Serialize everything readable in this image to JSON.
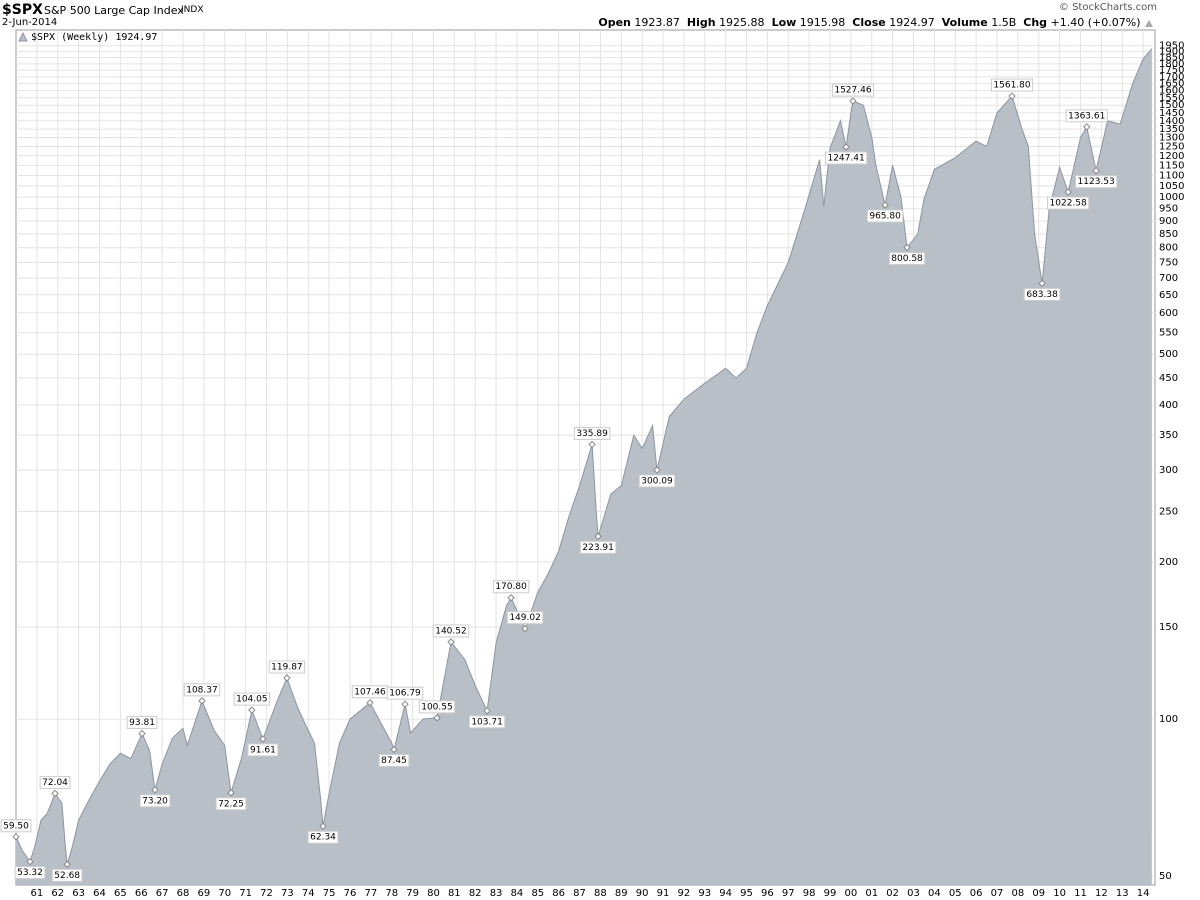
{
  "chart_data": {
    "type": "area",
    "symbol": "$SPX",
    "name": "S&P 500 Large Cap Index",
    "exchange": "INDX",
    "date": "2-Jun-2014",
    "source": "© StockCharts.com",
    "quote": {
      "open_label": "Open",
      "open": 1923.87,
      "high_label": "High",
      "high": 1925.88,
      "low_label": "Low",
      "low": 1915.98,
      "close_label": "Close",
      "close": 1924.97,
      "volume_label": "Volume",
      "volume": "1.5B",
      "chg_label": "Chg",
      "chg": "+1.40 (+0.07%)"
    },
    "log_scale": true,
    "grid": true,
    "xlim": [
      1960.0,
      2014.57
    ],
    "ylim": [
      48.1,
      2090
    ],
    "xticks": [
      {
        "value": 1961,
        "label": "61"
      },
      {
        "value": 1962,
        "label": "62"
      },
      {
        "value": 1963,
        "label": "63"
      },
      {
        "value": 1964,
        "label": "64"
      },
      {
        "value": 1965,
        "label": "65"
      },
      {
        "value": 1966,
        "label": "66"
      },
      {
        "value": 1967,
        "label": "67"
      },
      {
        "value": 1968,
        "label": "68"
      },
      {
        "value": 1969,
        "label": "69"
      },
      {
        "value": 1970,
        "label": "70"
      },
      {
        "value": 1971,
        "label": "71"
      },
      {
        "value": 1972,
        "label": "72"
      },
      {
        "value": 1973,
        "label": "73"
      },
      {
        "value": 1974,
        "label": "74"
      },
      {
        "value": 1975,
        "label": "75"
      },
      {
        "value": 1976,
        "label": "76"
      },
      {
        "value": 1977,
        "label": "77"
      },
      {
        "value": 1978,
        "label": "78"
      },
      {
        "value": 1979,
        "label": "79"
      },
      {
        "value": 1980,
        "label": "80"
      },
      {
        "value": 1981,
        "label": "81"
      },
      {
        "value": 1982,
        "label": "82"
      },
      {
        "value": 1983,
        "label": "83"
      },
      {
        "value": 1984,
        "label": "84"
      },
      {
        "value": 1985,
        "label": "85"
      },
      {
        "value": 1986,
        "label": "86"
      },
      {
        "value": 1987,
        "label": "87"
      },
      {
        "value": 1988,
        "label": "88"
      },
      {
        "value": 1989,
        "label": "89"
      },
      {
        "value": 1990,
        "label": "90"
      },
      {
        "value": 1991,
        "label": "91"
      },
      {
        "value": 1992,
        "label": "92"
      },
      {
        "value": 1993,
        "label": "93"
      },
      {
        "value": 1994,
        "label": "94"
      },
      {
        "value": 1995,
        "label": "95"
      },
      {
        "value": 1996,
        "label": "96"
      },
      {
        "value": 1997,
        "label": "97"
      },
      {
        "value": 1998,
        "label": "98"
      },
      {
        "value": 1999,
        "label": "99"
      },
      {
        "value": 2000,
        "label": "00"
      },
      {
        "value": 2001,
        "label": "01"
      },
      {
        "value": 2002,
        "label": "02"
      },
      {
        "value": 2003,
        "label": "03"
      },
      {
        "value": 2004,
        "label": "04"
      },
      {
        "value": 2005,
        "label": "05"
      },
      {
        "value": 2006,
        "label": "06"
      },
      {
        "value": 2007,
        "label": "07"
      },
      {
        "value": 2008,
        "label": "08"
      },
      {
        "value": 2009,
        "label": "09"
      },
      {
        "value": 2010,
        "label": "10"
      },
      {
        "value": 2011,
        "label": "11"
      },
      {
        "value": 2012,
        "label": "12"
      },
      {
        "value": 2013,
        "label": "13"
      },
      {
        "value": 2014,
        "label": "14"
      }
    ],
    "yticks": [
      50,
      100,
      150,
      200,
      250,
      300,
      350,
      400,
      450,
      500,
      550,
      600,
      650,
      700,
      750,
      800,
      850,
      900,
      950,
      1000,
      1050,
      1100,
      1150,
      1200,
      1250,
      1300,
      1350,
      1400,
      1450,
      1500,
      1550,
      1600,
      1650,
      1700,
      1750,
      1800,
      1850,
      1900,
      1950
    ],
    "series": [
      {
        "name": "$SPX (Weekly)",
        "last": 1924.97,
        "color": "#b9bfc7",
        "line_color": "#8c95a0",
        "x": [
          1960.0,
          1960.3,
          1960.67,
          1960.9,
          1961.2,
          1961.5,
          1961.87,
          1962.2,
          1962.35,
          1962.45,
          1962.7,
          1963.0,
          1963.5,
          1964.0,
          1964.5,
          1965.0,
          1965.5,
          1966.04,
          1966.4,
          1966.66,
          1967.0,
          1967.5,
          1968.0,
          1968.2,
          1968.91,
          1969.5,
          1970.0,
          1970.3,
          1970.8,
          1971.3,
          1971.83,
          1972.5,
          1972.98,
          1973.5,
          1973.9,
          1974.3,
          1974.6,
          1974.71,
          1975.0,
          1975.5,
          1976.0,
          1976.96,
          1977.5,
          1978.0,
          1978.11,
          1978.64,
          1978.9,
          1979.5,
          1980.17,
          1980.84,
          1981.5,
          1982.0,
          1982.57,
          1983.0,
          1983.5,
          1983.72,
          1984.39,
          1985.0,
          1985.5,
          1986.0,
          1986.5,
          1987.0,
          1987.6,
          1987.8,
          1987.89,
          1988.5,
          1989.0,
          1989.6,
          1990.0,
          1990.5,
          1990.71,
          1991.3,
          1992.0,
          1993.0,
          1994.0,
          1994.5,
          1995.0,
          1995.5,
          1996.0,
          1997.0,
          1997.8,
          1998.5,
          1998.7,
          1999.0,
          1999.5,
          1999.77,
          2000.0,
          2000.1,
          2000.6,
          2001.0,
          2001.2,
          2001.64,
          2002.0,
          2002.4,
          2002.69,
          2003.2,
          2003.5,
          2004.0,
          2005.0,
          2006.0,
          2006.5,
          2007.0,
          2007.72,
          2008.2,
          2008.5,
          2008.8,
          2009.16,
          2009.5,
          2010.0,
          2010.41,
          2011.0,
          2011.3,
          2011.75,
          2012.3,
          2012.9,
          2013.5,
          2014.0,
          2014.42
        ],
        "values": [
          59.5,
          56,
          53.32,
          57,
          64,
          66,
          72.04,
          69,
          58,
          52.68,
          57,
          64,
          70,
          76,
          82,
          86,
          84,
          93.81,
          87,
          73.2,
          82,
          92,
          96,
          89,
          108.37,
          95,
          89,
          72.25,
          84,
          104.05,
          91.61,
          108,
          119.87,
          105,
          97,
          90,
          70,
          62.34,
          72,
          90,
          100,
          107.46,
          98,
          90,
          87.45,
          106.79,
          94,
          100,
          100.55,
          140.52,
          130,
          116,
          103.71,
          140,
          165,
          170.8,
          149.02,
          175,
          190,
          210,
          245,
          280,
          335.89,
          250,
          223.91,
          270,
          280,
          350,
          330,
          365,
          300.09,
          380,
          410,
          440,
          470,
          450,
          470,
          550,
          620,
          750,
          950,
          1180,
          960,
          1240,
          1400,
          1247.41,
          1450,
          1527.46,
          1500,
          1300,
          1150,
          965.8,
          1150,
          1000,
          800.58,
          850,
          990,
          1130,
          1190,
          1280,
          1250,
          1450,
          1561.8,
          1350,
          1250,
          850,
          683.38,
          950,
          1140,
          1022.58,
          1300,
          1363.61,
          1123.53,
          1400,
          1380,
          1650,
          1840,
          1924.97
        ]
      }
    ],
    "annotations": [
      {
        "x": 1960.0,
        "value": 59.5,
        "label": "59.50"
      },
      {
        "x": 1960.67,
        "value": 53.32
      },
      {
        "x": 1961.87,
        "value": 72.04
      },
      {
        "x": 1962.45,
        "value": 52.68
      },
      {
        "x": 1966.04,
        "value": 93.81
      },
      {
        "x": 1966.66,
        "value": 73.2,
        "label": "73.20"
      },
      {
        "x": 1968.91,
        "value": 108.37
      },
      {
        "x": 1970.3,
        "value": 72.25
      },
      {
        "x": 1971.3,
        "value": 104.05
      },
      {
        "x": 1971.83,
        "value": 91.61
      },
      {
        "x": 1972.98,
        "value": 119.87
      },
      {
        "x": 1974.71,
        "value": 62.34
      },
      {
        "x": 1976.96,
        "value": 107.46
      },
      {
        "x": 1978.11,
        "value": 87.45
      },
      {
        "x": 1978.64,
        "value": 106.79
      },
      {
        "x": 1980.17,
        "value": 100.55
      },
      {
        "x": 1980.84,
        "value": 140.52
      },
      {
        "x": 1982.57,
        "value": 103.71
      },
      {
        "x": 1983.72,
        "value": 170.8,
        "label": "170.80"
      },
      {
        "x": 1984.39,
        "value": 149.02
      },
      {
        "x": 1987.6,
        "value": 335.89
      },
      {
        "x": 1987.89,
        "value": 223.91
      },
      {
        "x": 1990.71,
        "value": 300.09
      },
      {
        "x": 1999.77,
        "value": 1247.41
      },
      {
        "x": 2000.1,
        "value": 1527.46
      },
      {
        "x": 2001.64,
        "value": 965.8,
        "label": "965.80"
      },
      {
        "x": 2002.69,
        "value": 800.58
      },
      {
        "x": 2007.72,
        "value": 1561.8,
        "label": "1561.80"
      },
      {
        "x": 2009.16,
        "value": 683.38
      },
      {
        "x": 2010.41,
        "value": 1022.58
      },
      {
        "x": 2011.3,
        "value": 1363.61
      },
      {
        "x": 2011.75,
        "value": 1123.53
      }
    ]
  }
}
